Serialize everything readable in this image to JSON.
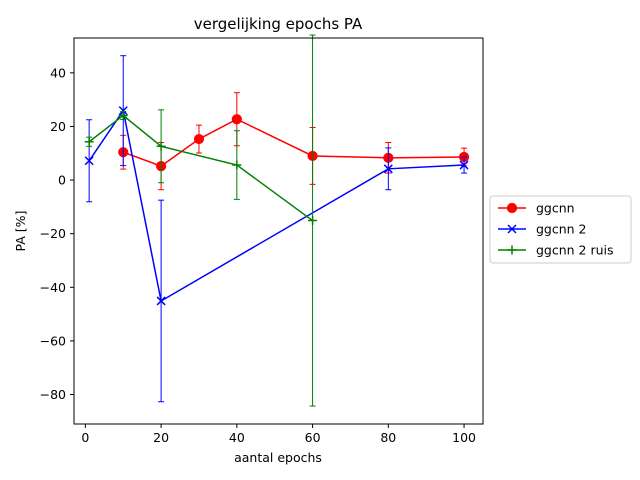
{
  "chart_data": {
    "type": "line",
    "title": "vergelijking epochs PA",
    "xlabel": "aantal epochs",
    "ylabel": "PA [%]",
    "xlim": [
      -3,
      105
    ],
    "ylim": [
      -91,
      53
    ],
    "xticks": [
      0,
      20,
      40,
      60,
      80,
      100
    ],
    "yticks": [
      -80,
      -60,
      -40,
      -20,
      0,
      20,
      40
    ],
    "ytick_labels": [
      "−80",
      "−60",
      "−40",
      "−20",
      "0",
      "20",
      "40"
    ],
    "grid": false,
    "legend_position": "center-right-outside",
    "series": [
      {
        "name": "ggcnn",
        "color": "#ff0000",
        "marker": "circle",
        "x": [
          10,
          20,
          30,
          40,
          60,
          80,
          100
        ],
        "y": [
          10.4,
          5.2,
          15.3,
          22.7,
          9.0,
          8.3,
          8.6
        ],
        "err": [
          6.3,
          8.8,
          5.2,
          9.9,
          10.6,
          5.7,
          3.3
        ]
      },
      {
        "name": "ggcnn 2",
        "color": "#0000ff",
        "marker": "x",
        "x": [
          1,
          10,
          20,
          80,
          100
        ],
        "y": [
          7.2,
          25.9,
          -45.1,
          4.2,
          5.6
        ],
        "err": [
          15.3,
          20.5,
          37.6,
          7.8,
          3.0
        ]
      },
      {
        "name": "ggcnn 2 ruis",
        "color": "#008000",
        "marker": "plus",
        "x": [
          1,
          10,
          20,
          40,
          60
        ],
        "y": [
          14.3,
          24.1,
          12.6,
          5.6,
          -15.1
        ],
        "err": [
          1.7,
          1.5,
          13.6,
          12.8,
          69.2
        ]
      }
    ]
  }
}
